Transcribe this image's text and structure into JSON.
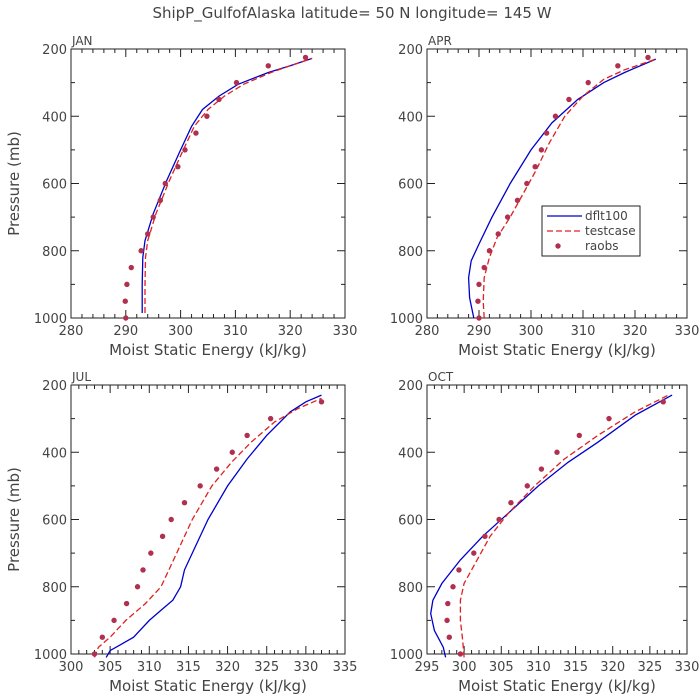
{
  "title": "ShipP_GulfofAlaska  latitude= 50 N longitude= 145 W",
  "legend": {
    "dflt": "dflt100",
    "test": "testcase",
    "raobs": "raobs"
  },
  "colors": {
    "dflt": "#0000cc",
    "test": "#e02020",
    "raobs": "#b03050"
  },
  "chart_data": [
    {
      "type": "line",
      "panel": "JAN",
      "xlabel": "Moist Static Energy (kJ/kg)",
      "ylabel": "Pressure (mb)",
      "xlim": [
        280,
        330
      ],
      "ylim": [
        1000,
        200
      ],
      "xticks": [
        280,
        290,
        300,
        310,
        320,
        330
      ],
      "yticks": [
        200,
        400,
        600,
        800,
        1000
      ],
      "series": [
        {
          "name": "dflt100",
          "style": "solid",
          "points": [
            [
              293.0,
              985
            ],
            [
              293.0,
              900
            ],
            [
              293.1,
              820
            ],
            [
              293.5,
              770
            ],
            [
              295.0,
              690
            ],
            [
              297.5,
              590
            ],
            [
              300.0,
              500
            ],
            [
              302.0,
              430
            ],
            [
              304.0,
              380
            ],
            [
              307.0,
              340
            ],
            [
              310.5,
              305
            ],
            [
              316.0,
              270
            ],
            [
              320.0,
              250
            ],
            [
              324.0,
              228
            ]
          ]
        },
        {
          "name": "testcase",
          "style": "dashed",
          "points": [
            [
              293.5,
              985
            ],
            [
              293.5,
              900
            ],
            [
              293.6,
              820
            ],
            [
              294.0,
              770
            ],
            [
              295.5,
              690
            ],
            [
              298.0,
              590
            ],
            [
              300.5,
              500
            ],
            [
              302.5,
              430
            ],
            [
              305.0,
              380
            ],
            [
              308.0,
              340
            ],
            [
              311.5,
              305
            ],
            [
              316.5,
              270
            ],
            [
              320.0,
              250
            ],
            [
              324.0,
              228
            ]
          ]
        },
        {
          "name": "raobs",
          "style": "marker",
          "points": [
            [
              290.0,
              1000
            ],
            [
              289.9,
              950
            ],
            [
              290.2,
              900
            ],
            [
              291.0,
              850
            ],
            [
              292.8,
              800
            ],
            [
              294.0,
              750
            ],
            [
              295.0,
              700
            ],
            [
              296.3,
              650
            ],
            [
              297.2,
              600
            ],
            [
              299.5,
              550
            ],
            [
              300.8,
              500
            ],
            [
              302.8,
              450
            ],
            [
              304.8,
              400
            ],
            [
              307.0,
              350
            ],
            [
              310.2,
              300
            ],
            [
              316.0,
              250
            ],
            [
              322.8,
              225
            ]
          ]
        }
      ]
    },
    {
      "type": "line",
      "panel": "APR",
      "xlabel": "Moist Static Energy (kJ/kg)",
      "ylabel": "",
      "xlim": [
        280,
        330
      ],
      "ylim": [
        1000,
        200
      ],
      "xticks": [
        280,
        290,
        300,
        310,
        320,
        330
      ],
      "yticks": [
        200,
        400,
        600,
        800,
        1000
      ],
      "series": [
        {
          "name": "dflt100",
          "style": "solid",
          "points": [
            [
              289.0,
              1000
            ],
            [
              288.2,
              940
            ],
            [
              288.0,
              880
            ],
            [
              288.5,
              830
            ],
            [
              290.0,
              780
            ],
            [
              292.5,
              700
            ],
            [
              296.0,
              600
            ],
            [
              300.0,
              500
            ],
            [
              304.0,
              420
            ],
            [
              309.0,
              350
            ],
            [
              314.0,
              300
            ],
            [
              318.0,
              270
            ],
            [
              324.0,
              230
            ]
          ]
        },
        {
          "name": "testcase",
          "style": "dashed",
          "points": [
            [
              291.0,
              1000
            ],
            [
              290.8,
              950
            ],
            [
              291.0,
              880
            ],
            [
              292.0,
              820
            ],
            [
              293.5,
              760
            ],
            [
              296.0,
              700
            ],
            [
              298.5,
              630
            ],
            [
              301.0,
              560
            ],
            [
              303.5,
              480
            ],
            [
              306.5,
              400
            ],
            [
              310.0,
              340
            ],
            [
              314.0,
              290
            ],
            [
              318.0,
              262
            ],
            [
              324.0,
              230
            ]
          ]
        },
        {
          "name": "raobs",
          "style": "marker",
          "points": [
            [
              290.0,
              1000
            ],
            [
              289.8,
              950
            ],
            [
              290.0,
              900
            ],
            [
              291.0,
              850
            ],
            [
              292.0,
              800
            ],
            [
              293.7,
              750
            ],
            [
              295.5,
              700
            ],
            [
              297.4,
              650
            ],
            [
              299.2,
              600
            ],
            [
              300.8,
              550
            ],
            [
              302.0,
              500
            ],
            [
              303.0,
              450
            ],
            [
              304.7,
              400
            ],
            [
              307.3,
              350
            ],
            [
              311.0,
              300
            ],
            [
              316.7,
              250
            ],
            [
              322.5,
              225
            ]
          ]
        }
      ]
    },
    {
      "type": "line",
      "panel": "JUL",
      "xlabel": "Moist Static Energy (kJ/kg)",
      "ylabel": "Pressure (mb)",
      "xlim": [
        300,
        335
      ],
      "ylim": [
        1000,
        200
      ],
      "xticks": [
        300,
        305,
        310,
        315,
        320,
        325,
        330,
        335
      ],
      "yticks": [
        200,
        400,
        600,
        800,
        1000
      ],
      "series": [
        {
          "name": "dflt100",
          "style": "solid",
          "points": [
            [
              304.5,
              1010
            ],
            [
              305.0,
              990
            ],
            [
              306.5,
              970
            ],
            [
              308.0,
              950
            ],
            [
              310.0,
              900
            ],
            [
              311.5,
              870
            ],
            [
              313.0,
              840
            ],
            [
              314.0,
              800
            ],
            [
              314.5,
              750
            ],
            [
              315.5,
              700
            ],
            [
              317.5,
              600
            ],
            [
              320.0,
              500
            ],
            [
              322.5,
              420
            ],
            [
              325.0,
              350
            ],
            [
              328.0,
              280
            ],
            [
              330.0,
              250
            ],
            [
              332.0,
              230
            ]
          ]
        },
        {
          "name": "testcase",
          "style": "dashed",
          "points": [
            [
              303.0,
              1010
            ],
            [
              303.5,
              980
            ],
            [
              305.0,
              950
            ],
            [
              307.0,
              900
            ],
            [
              309.5,
              850
            ],
            [
              311.5,
              800
            ],
            [
              312.5,
              750
            ],
            [
              313.5,
              700
            ],
            [
              315.5,
              600
            ],
            [
              318.0,
              500
            ],
            [
              320.5,
              430
            ],
            [
              323.0,
              370
            ],
            [
              326.0,
              310
            ],
            [
              329.0,
              270
            ],
            [
              332.0,
              240
            ]
          ]
        },
        {
          "name": "raobs",
          "style": "marker",
          "points": [
            [
              303.0,
              1000
            ],
            [
              304.0,
              950
            ],
            [
              305.5,
              900
            ],
            [
              307.1,
              850
            ],
            [
              308.5,
              800
            ],
            [
              309.2,
              750
            ],
            [
              310.2,
              700
            ],
            [
              311.7,
              650
            ],
            [
              312.8,
              600
            ],
            [
              314.5,
              550
            ],
            [
              316.5,
              500
            ],
            [
              318.6,
              450
            ],
            [
              320.6,
              400
            ],
            [
              322.5,
              350
            ],
            [
              325.5,
              300
            ],
            [
              332.0,
              250
            ]
          ]
        }
      ]
    },
    {
      "type": "line",
      "panel": "OCT",
      "xlabel": "Moist Static Energy (kJ/kg)",
      "ylabel": "",
      "xlim": [
        295,
        330
      ],
      "ylim": [
        1000,
        200
      ],
      "xticks": [
        295,
        300,
        305,
        310,
        315,
        320,
        325,
        330
      ],
      "yticks": [
        200,
        400,
        600,
        800,
        1000
      ],
      "series": [
        {
          "name": "dflt100",
          "style": "solid",
          "points": [
            [
              297.5,
              1010
            ],
            [
              297.2,
              980
            ],
            [
              296.0,
              930
            ],
            [
              295.5,
              880
            ],
            [
              295.8,
              840
            ],
            [
              297.0,
              790
            ],
            [
              299.5,
              720
            ],
            [
              302.5,
              650
            ],
            [
              306.0,
              580
            ],
            [
              310.0,
              500
            ],
            [
              314.0,
              430
            ],
            [
              318.0,
              370
            ],
            [
              323.0,
              290
            ],
            [
              328.0,
              230
            ]
          ]
        },
        {
          "name": "testcase",
          "style": "dashed",
          "points": [
            [
              300.0,
              1010
            ],
            [
              299.8,
              960
            ],
            [
              299.5,
              900
            ],
            [
              299.5,
              840
            ],
            [
              300.0,
              790
            ],
            [
              301.5,
              730
            ],
            [
              303.5,
              650
            ],
            [
              306.0,
              580
            ],
            [
              309.5,
              500
            ],
            [
              313.5,
              420
            ],
            [
              318.0,
              350
            ],
            [
              323.0,
              280
            ],
            [
              327.5,
              230
            ]
          ]
        },
        {
          "name": "raobs",
          "style": "marker",
          "points": [
            [
              299.5,
              1000
            ],
            [
              298.0,
              950
            ],
            [
              297.7,
              900
            ],
            [
              297.8,
              850
            ],
            [
              298.5,
              800
            ],
            [
              299.3,
              750
            ],
            [
              301.3,
              700
            ],
            [
              302.8,
              650
            ],
            [
              304.7,
              600
            ],
            [
              306.3,
              550
            ],
            [
              308.5,
              500
            ],
            [
              310.4,
              450
            ],
            [
              312.5,
              400
            ],
            [
              315.5,
              350
            ],
            [
              319.5,
              300
            ],
            [
              326.8,
              250
            ]
          ]
        }
      ]
    }
  ]
}
